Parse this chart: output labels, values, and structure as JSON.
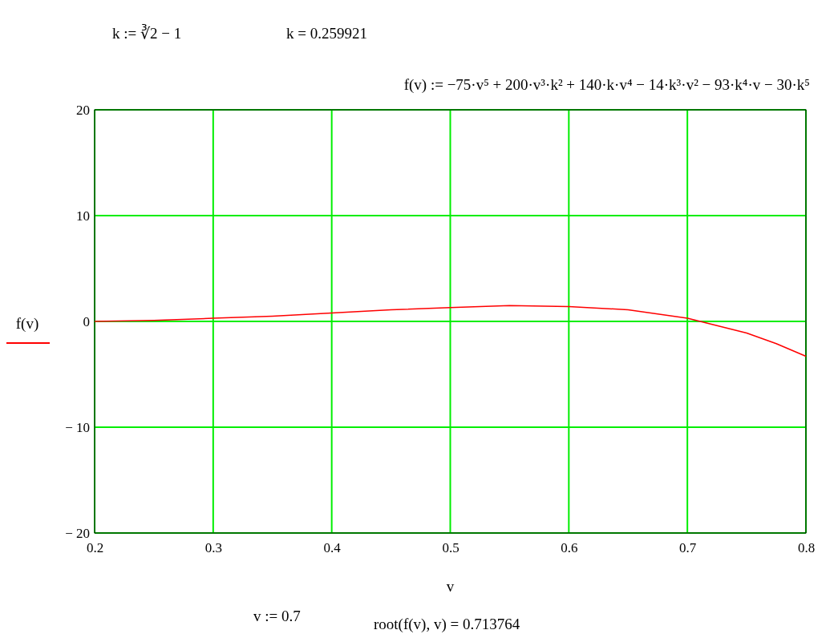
{
  "chart_data": {
    "type": "line",
    "title": "k := ∛2 − 1",
    "subtitle": "f(v) := −75·v⁵ + 200·v³·k² + 140·k·v⁴ − 14·k³·v² − 93·k⁴·v − 30·k⁵",
    "annotations": [
      "k = 0.259921",
      "v := 0.7",
      "root(f(v), v) = 0.713764"
    ],
    "xlabel": "v",
    "ylabel": "f(v)",
    "x": [
      0.2,
      0.25,
      0.3,
      0.35,
      0.4,
      0.45,
      0.5,
      0.55,
      0.6,
      0.65,
      0.7,
      0.75,
      0.775,
      0.8
    ],
    "series": [
      {
        "color": "#ff0000",
        "values": [
          0.0,
          0.1,
          0.3,
          0.5,
          0.8,
          1.1,
          1.3,
          1.5,
          1.4,
          1.1,
          0.3,
          -1.1,
          -2.1,
          -3.3
        ]
      }
    ],
    "xlim": [
      0.2,
      0.8
    ],
    "xticks": [
      0.2,
      0.3,
      0.4,
      0.5,
      0.6,
      0.7,
      0.8
    ],
    "ylim": [
      -20,
      20
    ],
    "yticks": [
      {
        "value": -20,
        "label": "− 20"
      },
      {
        "value": -10,
        "label": "− 10"
      },
      0,
      10,
      20
    ],
    "grid": true,
    "marker": "none",
    "line_style": "solid"
  }
}
